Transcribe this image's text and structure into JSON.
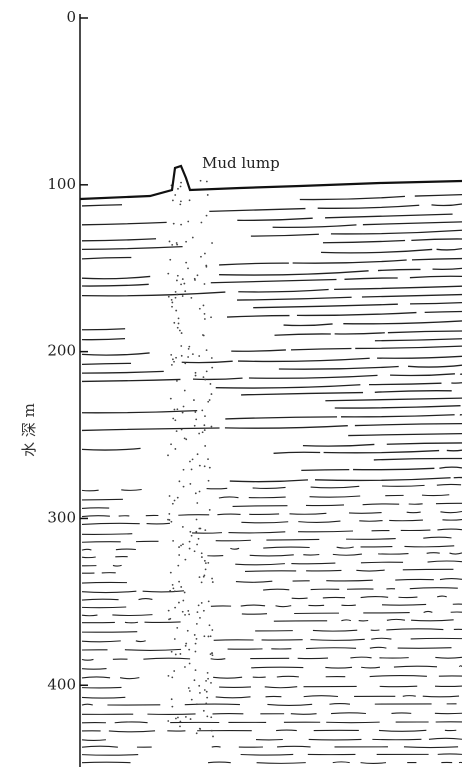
{
  "axis": {
    "label": "水 深 m",
    "ticks": [
      0,
      100,
      200,
      300,
      400
    ],
    "lim": [
      0,
      449
    ]
  },
  "annotation": "Mud lump"
}
